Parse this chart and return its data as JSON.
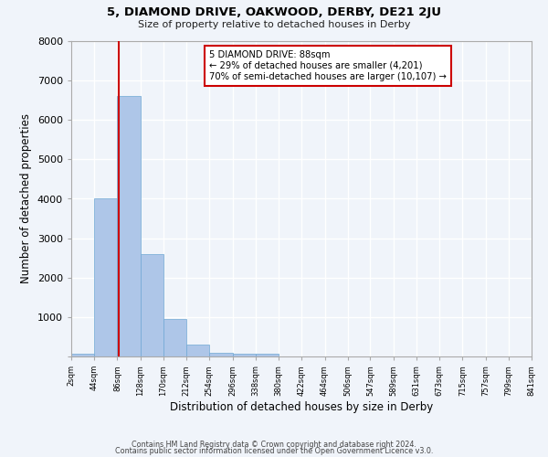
{
  "title": "5, DIAMOND DRIVE, OAKWOOD, DERBY, DE21 2JU",
  "subtitle": "Size of property relative to detached houses in Derby",
  "xlabel": "Distribution of detached houses by size in Derby",
  "ylabel": "Number of detached properties",
  "bar_edges": [
    2,
    44,
    86,
    128,
    170,
    212,
    254,
    296,
    338,
    380,
    422,
    464,
    506,
    547,
    589,
    631,
    673,
    715,
    757,
    799,
    841
  ],
  "bar_heights": [
    75,
    4000,
    6600,
    2600,
    950,
    300,
    100,
    75,
    75,
    0,
    0,
    0,
    0,
    0,
    0,
    0,
    0,
    0,
    0,
    0
  ],
  "bar_color": "#aec6e8",
  "bar_edgecolor": "#6fa8d4",
  "ylim": [
    0,
    8000
  ],
  "yticks": [
    0,
    1000,
    2000,
    3000,
    4000,
    5000,
    6000,
    7000,
    8000
  ],
  "property_size": 88,
  "vline_color": "#cc0000",
  "annotation_line1": "5 DIAMOND DRIVE: 88sqm",
  "annotation_line2": "← 29% of detached houses are smaller (4,201)",
  "annotation_line3": "70% of semi-detached houses are larger (10,107) →",
  "annotation_box_color": "#ffffff",
  "annotation_box_edgecolor": "#cc0000",
  "background_color": "#f0f4fa",
  "grid_color": "#ffffff",
  "tick_labels": [
    "2sqm",
    "44sqm",
    "86sqm",
    "128sqm",
    "170sqm",
    "212sqm",
    "254sqm",
    "296sqm",
    "338sqm",
    "380sqm",
    "422sqm",
    "464sqm",
    "506sqm",
    "547sqm",
    "589sqm",
    "631sqm",
    "673sqm",
    "715sqm",
    "757sqm",
    "799sqm",
    "841sqm"
  ],
  "footer_line1": "Contains HM Land Registry data © Crown copyright and database right 2024.",
  "footer_line2": "Contains public sector information licensed under the Open Government Licence v3.0."
}
